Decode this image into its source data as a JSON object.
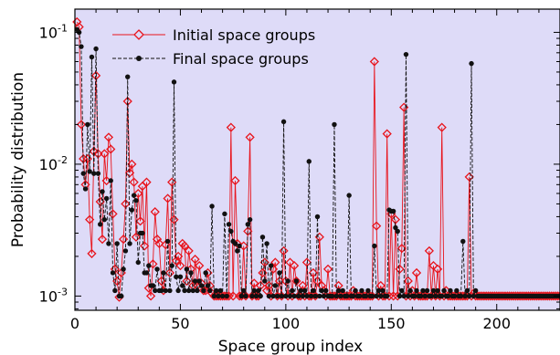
{
  "chart_data": {
    "type": "line",
    "title": "",
    "xlabel": "Space group index",
    "ylabel": "Probability distribution",
    "xlim": [
      0,
      230
    ],
    "ylim": [
      0.00078,
      0.15
    ],
    "yscale": "log",
    "grid": false,
    "legend_position": "top-left",
    "background": "#dedbf8",
    "x_ticks": [
      0,
      50,
      100,
      150,
      200
    ],
    "y_ticks": [
      {
        "value": 0.001,
        "base": "10",
        "exp": "-3"
      },
      {
        "value": 0.01,
        "base": "10",
        "exp": "-2"
      },
      {
        "value": 0.1,
        "base": "10",
        "exp": "-1"
      }
    ],
    "series": [
      {
        "name": "Initial space groups",
        "color": "#e8141c",
        "marker": "diamond-open",
        "line": "solid",
        "spikes": [
          [
            1,
            0.12
          ],
          [
            2,
            0.11
          ],
          [
            3,
            0.02
          ],
          [
            4,
            0.011
          ],
          [
            5,
            0.007
          ],
          [
            6,
            0.011
          ],
          [
            7,
            0.0038
          ],
          [
            8,
            0.0021
          ],
          [
            9,
            0.0125
          ],
          [
            10,
            0.047
          ],
          [
            11,
            0.012
          ],
          [
            12,
            0.0052
          ],
          [
            13,
            0.0027
          ],
          [
            14,
            0.012
          ],
          [
            15,
            0.0075
          ],
          [
            16,
            0.016
          ],
          [
            17,
            0.013
          ],
          [
            18,
            0.0042
          ],
          [
            19,
            0.0016
          ],
          [
            20,
            0.0013
          ],
          [
            21,
            0.00098
          ],
          [
            22,
            0.0015
          ],
          [
            23,
            0.0027
          ],
          [
            24,
            0.005
          ],
          [
            25,
            0.03
          ],
          [
            26,
            0.0086
          ],
          [
            27,
            0.01
          ],
          [
            28,
            0.0073
          ],
          [
            29,
            0.0028
          ],
          [
            30,
            0.006
          ],
          [
            31,
            0.0037
          ],
          [
            32,
            0.0068
          ],
          [
            33,
            0.0024
          ],
          [
            34,
            0.0073
          ],
          [
            35,
            0.00115
          ],
          [
            36,
            0.001
          ],
          [
            37,
            0.00175
          ],
          [
            38,
            0.00435
          ],
          [
            39,
            0.0027
          ],
          [
            40,
            0.0025
          ],
          [
            41,
            0.0013
          ],
          [
            42,
            0.0011
          ],
          [
            43,
            0.00245
          ],
          [
            44,
            0.0055
          ],
          [
            45,
            0.0015
          ],
          [
            46,
            0.0073
          ],
          [
            47,
            0.0038
          ],
          [
            48,
            0.00185
          ],
          [
            49,
            0.002
          ],
          [
            50,
            0.0017
          ],
          [
            51,
            0.0025
          ],
          [
            52,
            0.0024
          ],
          [
            53,
            0.0013
          ],
          [
            54,
            0.0022
          ],
          [
            55,
            0.0016
          ],
          [
            56,
            0.0012
          ],
          [
            57,
            0.0019
          ],
          [
            58,
            0.0012
          ],
          [
            59,
            0.0017
          ],
          [
            60,
            0.00125
          ],
          [
            61,
            0.0011
          ],
          [
            62,
            0.0011
          ],
          [
            63,
            0.0015
          ],
          [
            64,
            0.0012
          ],
          [
            65,
            0.00105
          ],
          [
            70,
            0.001
          ],
          [
            74,
            0.019
          ],
          [
            76,
            0.0075
          ],
          [
            77,
            0.0025
          ],
          [
            80,
            0.0024
          ],
          [
            82,
            0.0031
          ],
          [
            83,
            0.016
          ],
          [
            85,
            0.00125
          ],
          [
            88,
            0.0012
          ],
          [
            89,
            0.0015
          ],
          [
            90,
            0.0018
          ],
          [
            91,
            0.0011
          ],
          [
            92,
            0.0012
          ],
          [
            94,
            0.0016
          ],
          [
            95,
            0.0018
          ],
          [
            97,
            0.0013
          ],
          [
            99,
            0.0022
          ],
          [
            100,
            0.0013
          ],
          [
            102,
            0.0018
          ],
          [
            104,
            0.0017
          ],
          [
            105,
            0.0013
          ],
          [
            108,
            0.0012
          ],
          [
            110,
            0.0018
          ],
          [
            113,
            0.0015
          ],
          [
            115,
            0.0013
          ],
          [
            116,
            0.0028
          ],
          [
            117,
            0.0012
          ],
          [
            118,
            0.0011
          ],
          [
            120,
            0.0016
          ],
          [
            125,
            0.0012
          ],
          [
            132,
            0.0011
          ],
          [
            142,
            0.06
          ],
          [
            143,
            0.0034
          ],
          [
            145,
            0.0012
          ],
          [
            148,
            0.017
          ],
          [
            150,
            0.0042
          ],
          [
            152,
            0.0038
          ],
          [
            154,
            0.0016
          ],
          [
            155,
            0.0023
          ],
          [
            156,
            0.027
          ],
          [
            158,
            0.0013
          ],
          [
            160,
            0.0011
          ],
          [
            162,
            0.0015
          ],
          [
            168,
            0.0022
          ],
          [
            170,
            0.0017
          ],
          [
            172,
            0.0016
          ],
          [
            174,
            0.019
          ],
          [
            176,
            0.0011
          ],
          [
            187,
            0.008
          ],
          [
            189,
            0.00105
          ]
        ]
      },
      {
        "name": "Final space groups",
        "color": "#111111",
        "marker": "circle-filled",
        "line": "dashed",
        "spikes": [
          [
            1,
            0.105
          ],
          [
            2,
            0.1
          ],
          [
            3,
            0.078
          ],
          [
            4,
            0.0085
          ],
          [
            5,
            0.0065
          ],
          [
            6,
            0.02
          ],
          [
            7,
            0.0088
          ],
          [
            8,
            0.065
          ],
          [
            9,
            0.0085
          ],
          [
            10,
            0.075
          ],
          [
            11,
            0.0085
          ],
          [
            12,
            0.0035
          ],
          [
            13,
            0.0062
          ],
          [
            14,
            0.0038
          ],
          [
            15,
            0.0055
          ],
          [
            16,
            0.0025
          ],
          [
            17,
            0.0075
          ],
          [
            18,
            0.0015
          ],
          [
            19,
            0.0011
          ],
          [
            20,
            0.0025
          ],
          [
            21,
            0.001
          ],
          [
            22,
            0.001
          ],
          [
            23,
            0.0016
          ],
          [
            24,
            0.0022
          ],
          [
            25,
            0.046
          ],
          [
            26,
            0.0025
          ],
          [
            27,
            0.0045
          ],
          [
            28,
            0.0058
          ],
          [
            29,
            0.0053
          ],
          [
            30,
            0.0018
          ],
          [
            31,
            0.003
          ],
          [
            32,
            0.003
          ],
          [
            33,
            0.0015
          ],
          [
            34,
            0.0015
          ],
          [
            35,
            0.0017
          ],
          [
            36,
            0.0012
          ],
          [
            37,
            0.0012
          ],
          [
            38,
            0.0011
          ],
          [
            39,
            0.0016
          ],
          [
            40,
            0.0011
          ],
          [
            41,
            0.0011
          ],
          [
            42,
            0.0015
          ],
          [
            43,
            0.0011
          ],
          [
            44,
            0.0026
          ],
          [
            45,
            0.0011
          ],
          [
            46,
            0.0017
          ],
          [
            47,
            0.042
          ],
          [
            48,
            0.0014
          ],
          [
            49,
            0.0011
          ],
          [
            50,
            0.0014
          ],
          [
            51,
            0.0012
          ],
          [
            52,
            0.0011
          ],
          [
            53,
            0.0016
          ],
          [
            54,
            0.0011
          ],
          [
            55,
            0.0015
          ],
          [
            56,
            0.0011
          ],
          [
            57,
            0.0013
          ],
          [
            58,
            0.0011
          ],
          [
            59,
            0.0013
          ],
          [
            60,
            0.0012
          ],
          [
            61,
            0.0011
          ],
          [
            62,
            0.0015
          ],
          [
            63,
            0.0012
          ],
          [
            64,
            0.0011
          ],
          [
            65,
            0.0048
          ],
          [
            67,
            0.0011
          ],
          [
            69,
            0.0011
          ],
          [
            71,
            0.0042
          ],
          [
            73,
            0.0035
          ],
          [
            74,
            0.0031
          ],
          [
            75,
            0.0026
          ],
          [
            76,
            0.0025
          ],
          [
            77,
            0.0022
          ],
          [
            78,
            0.0024
          ],
          [
            80,
            0.0011
          ],
          [
            82,
            0.0035
          ],
          [
            83,
            0.0038
          ],
          [
            85,
            0.0011
          ],
          [
            87,
            0.0011
          ],
          [
            89,
            0.0028
          ],
          [
            90,
            0.0013
          ],
          [
            91,
            0.0025
          ],
          [
            93,
            0.0017
          ],
          [
            95,
            0.0012
          ],
          [
            97,
            0.0015
          ],
          [
            99,
            0.021
          ],
          [
            101,
            0.0013
          ],
          [
            103,
            0.0011
          ],
          [
            105,
            0.0013
          ],
          [
            107,
            0.0011
          ],
          [
            109,
            0.0011
          ],
          [
            111,
            0.0105
          ],
          [
            113,
            0.0011
          ],
          [
            115,
            0.004
          ],
          [
            117,
            0.0011
          ],
          [
            119,
            0.0011
          ],
          [
            123,
            0.02
          ],
          [
            125,
            0.0011
          ],
          [
            127,
            0.0011
          ],
          [
            130,
            0.0058
          ],
          [
            133,
            0.0011
          ],
          [
            136,
            0.0011
          ],
          [
            139,
            0.0011
          ],
          [
            142,
            0.0024
          ],
          [
            144,
            0.0011
          ],
          [
            146,
            0.0011
          ],
          [
            149,
            0.0045
          ],
          [
            150,
            0.0044
          ],
          [
            151,
            0.0044
          ],
          [
            152,
            0.0033
          ],
          [
            153,
            0.0031
          ],
          [
            155,
            0.0011
          ],
          [
            157,
            0.068
          ],
          [
            159,
            0.0011
          ],
          [
            162,
            0.0011
          ],
          [
            165,
            0.0011
          ],
          [
            167,
            0.0011
          ],
          [
            170,
            0.0011
          ],
          [
            172,
            0.0011
          ],
          [
            175,
            0.0011
          ],
          [
            178,
            0.0011
          ],
          [
            181,
            0.0011
          ],
          [
            184,
            0.0026
          ],
          [
            186,
            0.0011
          ],
          [
            188,
            0.058
          ],
          [
            190,
            0.0011
          ]
        ]
      }
    ],
    "baseline": 0.001
  }
}
